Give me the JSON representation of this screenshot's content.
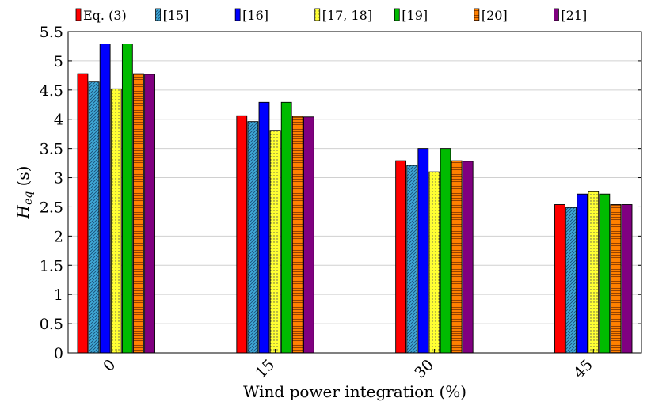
{
  "chart_data": {
    "type": "bar",
    "title": "",
    "xlabel": "Wind power integration (%)",
    "ylabel": "H",
    "ylabel_sub": "eq",
    "ylabel_unit": " (s)",
    "categories": [
      "0",
      "15",
      "30",
      "45"
    ],
    "ylim": [
      0,
      5.5
    ],
    "yticks": [
      "0",
      "0.5",
      "1",
      "1.5",
      "2",
      "2.5",
      "3",
      "3.5",
      "4",
      "4.5",
      "5",
      "5.5"
    ],
    "grid": true,
    "legend_position": "top",
    "series": [
      {
        "name": "Eq. (3)",
        "color": "#ff0000",
        "pattern": "solid",
        "values": [
          4.78,
          4.06,
          3.29,
          2.54
        ]
      },
      {
        "name": "[15]",
        "color": "#3fa9d8",
        "pattern": "diagonal",
        "values": [
          4.65,
          3.96,
          3.21,
          2.49
        ]
      },
      {
        "name": "[16]",
        "color": "#0000ff",
        "pattern": "solid",
        "values": [
          5.29,
          4.29,
          3.5,
          2.72
        ]
      },
      {
        "name": "[17, 18]",
        "color": "#ffff33",
        "pattern": "dots",
        "values": [
          4.52,
          3.81,
          3.1,
          2.76
        ]
      },
      {
        "name": "[19]",
        "color": "#00bb00",
        "pattern": "solid",
        "values": [
          5.29,
          4.29,
          3.5,
          2.72
        ]
      },
      {
        "name": "[20]",
        "color": "#ff8000",
        "pattern": "horizontal",
        "values": [
          4.78,
          4.05,
          3.29,
          2.54
        ]
      },
      {
        "name": "[21]",
        "color": "#800080",
        "pattern": "solid",
        "values": [
          4.77,
          4.04,
          3.28,
          2.54
        ]
      }
    ]
  }
}
